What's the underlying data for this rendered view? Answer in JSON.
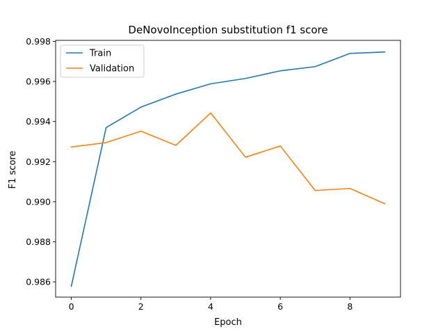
{
  "chart_data": {
    "type": "line",
    "title": "DeNovoInception substitution f1 score",
    "xlabel": "Epoch",
    "ylabel": "F1 score",
    "x": [
      0,
      1,
      2,
      3,
      4,
      5,
      6,
      7,
      8,
      9
    ],
    "xticks": [
      "0",
      "2",
      "4",
      "6",
      "8"
    ],
    "yticks": [
      "0.986",
      "0.988",
      "0.990",
      "0.992",
      "0.994",
      "0.996",
      "0.998"
    ],
    "xlim": [
      -0.45,
      9.45
    ],
    "ylim": [
      0.98524,
      0.99805
    ],
    "grid": false,
    "legend_position": "top-left",
    "series": [
      {
        "name": "Train",
        "color": "#1f77b4",
        "values": [
          0.98578,
          0.9937,
          0.99472,
          0.99537,
          0.99588,
          0.99615,
          0.99653,
          0.99674,
          0.9974,
          0.99747
        ]
      },
      {
        "name": "Validation",
        "color": "#ff7f0e",
        "values": [
          0.99273,
          0.99295,
          0.99352,
          0.99281,
          0.99443,
          0.99222,
          0.99278,
          0.99056,
          0.99066,
          0.9899
        ]
      }
    ]
  }
}
